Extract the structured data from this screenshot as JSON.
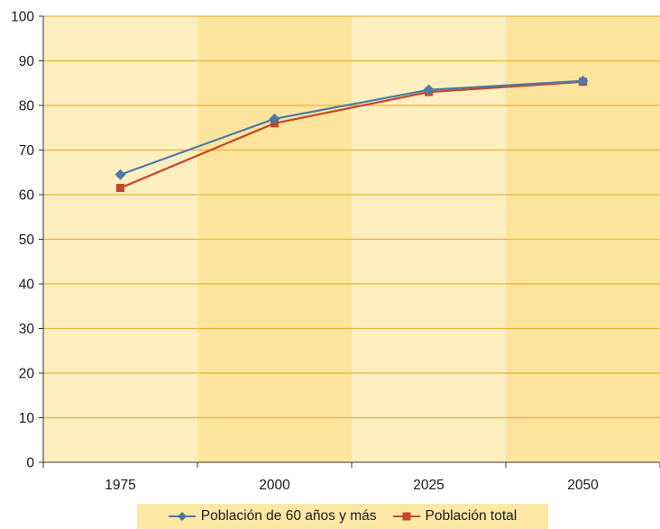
{
  "chart_data": {
    "type": "line",
    "title": "",
    "xlabel": "",
    "ylabel": "",
    "categories": [
      "1975",
      "2000",
      "2025",
      "2050"
    ],
    "ylim": [
      0,
      100
    ],
    "yticks": [
      "0",
      "10",
      "20",
      "30",
      "40",
      "50",
      "60",
      "70",
      "80",
      "90",
      "100"
    ],
    "grid": true,
    "legend_position": "bottom",
    "series": [
      {
        "name": "Población de 60 años y más",
        "values": [
          64.5,
          77.0,
          83.5,
          85.5
        ],
        "color": "#4a7aa5",
        "marker": "diamond"
      },
      {
        "name": "Población total",
        "values": [
          61.5,
          76.0,
          83.0,
          85.3
        ],
        "color": "#c8452d",
        "marker": "square"
      }
    ],
    "colors": {
      "band_light": "#fdefc0",
      "band_dark": "#fde59e",
      "gridline": "#e7b53a"
    }
  }
}
